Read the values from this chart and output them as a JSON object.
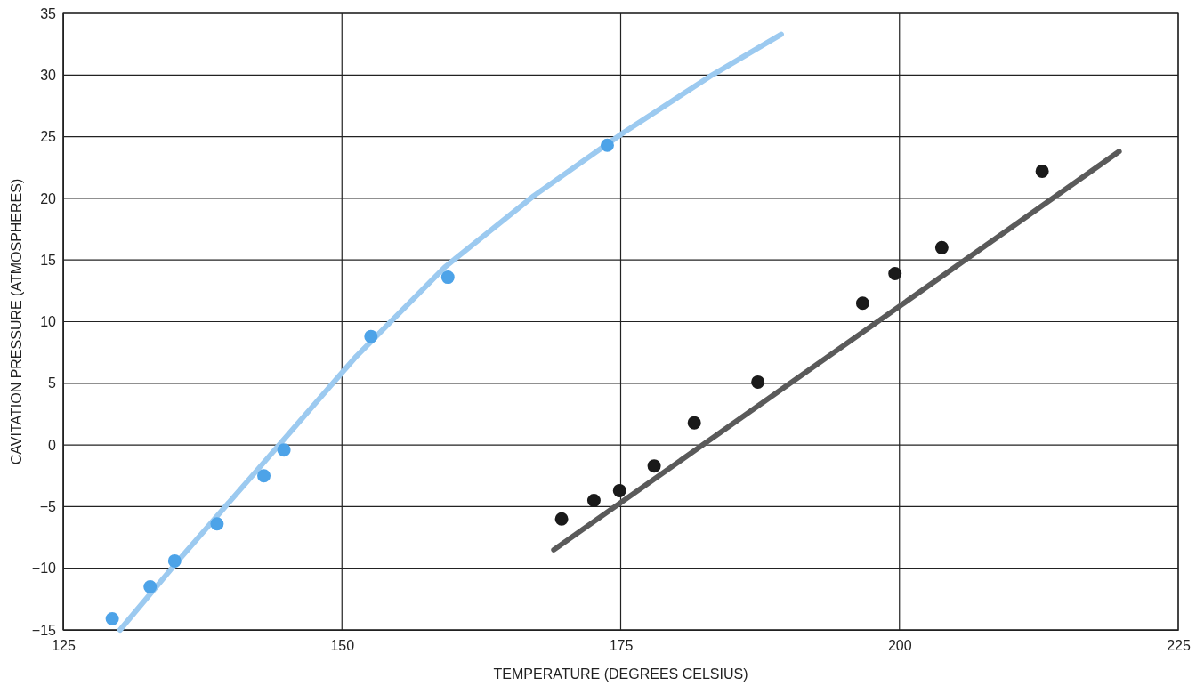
{
  "chart_data": {
    "type": "scatter",
    "xlabel": "TEMPERATURE (DEGREES CELSIUS)",
    "ylabel": "CAVITATION PRESSURE (ATMOSPHERES)",
    "xlim": [
      125,
      225
    ],
    "xticks": [
      125,
      150,
      175,
      200,
      225
    ],
    "ylim": [
      -15,
      35
    ],
    "yticks": [
      {
        "value": -15,
        "label": "−15"
      },
      {
        "value": -10,
        "label": "−10"
      },
      {
        "value": -5,
        "label": "−5"
      },
      0,
      5,
      10,
      15,
      20,
      25,
      30,
      35
    ],
    "grid": true,
    "series": [
      {
        "type": "line",
        "color": "#9ccaf0",
        "marker": "none",
        "x": [
          130.1,
          135.3,
          143.3,
          151.3,
          159.2,
          167.2,
          175.2,
          183.2,
          189.4
        ],
        "values": [
          -15,
          -9.4,
          -1.1,
          7.2,
          14.4,
          20.2,
          25.3,
          30,
          33.3
        ]
      },
      {
        "type": "line",
        "color": "#5a5a5a",
        "marker": "none",
        "x": [
          169,
          219.7
        ],
        "values": [
          -8.5,
          23.8
        ]
      },
      {
        "color": "#4da3e8",
        "marker": "circle",
        "x": [
          129.4,
          132.8,
          135,
          138.8,
          143,
          144.8
        ],
        "values": [
          -14.1,
          -11.5,
          -9.4,
          -6.4,
          -2.5,
          -0.4
        ]
      },
      {
        "color": "#4da3e8",
        "marker": "circle",
        "x": [
          152.6,
          159.5,
          173.8
        ],
        "values": [
          8.8,
          13.6,
          24.3
        ]
      },
      {
        "color": "#1a1a1a",
        "marker": "circle",
        "x": [
          169.7,
          172.6,
          174.9,
          178,
          181.6
        ],
        "values": [
          -6,
          -4.5,
          -3.7,
          -1.7,
          1.8
        ]
      },
      {
        "color": "#1a1a1a",
        "marker": "circle",
        "x": [
          187.3,
          196.7,
          199.6,
          203.8,
          212.8
        ],
        "values": [
          5.1,
          11.5,
          13.9,
          16,
          22.2
        ]
      }
    ]
  }
}
